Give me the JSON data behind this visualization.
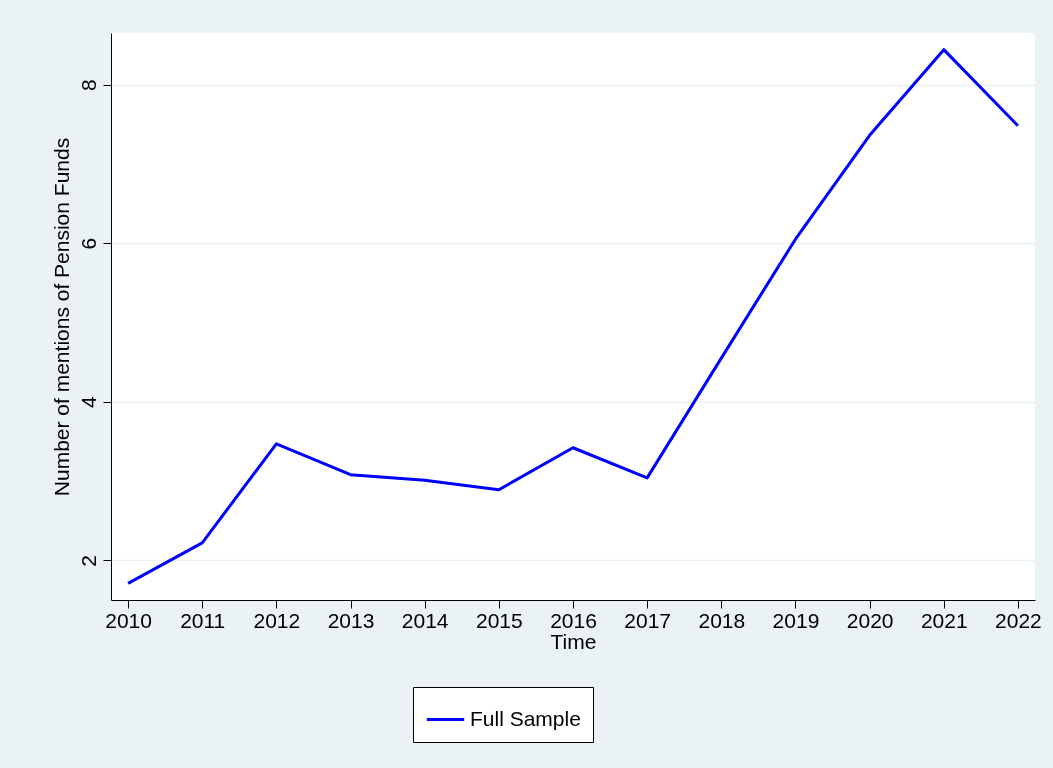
{
  "chart_data": {
    "type": "line",
    "xlabel": "Time",
    "ylabel": "Number of mentions of Pension Funds",
    "x": [
      2010,
      2011,
      2012,
      2013,
      2014,
      2015,
      2016,
      2017,
      2018,
      2019,
      2020,
      2021,
      2022
    ],
    "series": [
      {
        "name": "Full Sample",
        "color": "#0000ff",
        "values": [
          1.71,
          2.22,
          3.47,
          3.08,
          3.01,
          2.89,
          3.42,
          3.04,
          4.55,
          6.05,
          7.36,
          8.44,
          7.48
        ]
      }
    ],
    "xlim": [
      2009.77,
      2022.23
    ],
    "xticks": [
      2010,
      2011,
      2012,
      2013,
      2014,
      2015,
      2016,
      2017,
      2018,
      2019,
      2020,
      2021,
      2022
    ],
    "ylim": [
      1.5,
      8.65
    ],
    "yticks": [
      2,
      4,
      6,
      8
    ],
    "grid": "y",
    "legend": "bottom",
    "marker": "none",
    "line_style": "solid"
  }
}
